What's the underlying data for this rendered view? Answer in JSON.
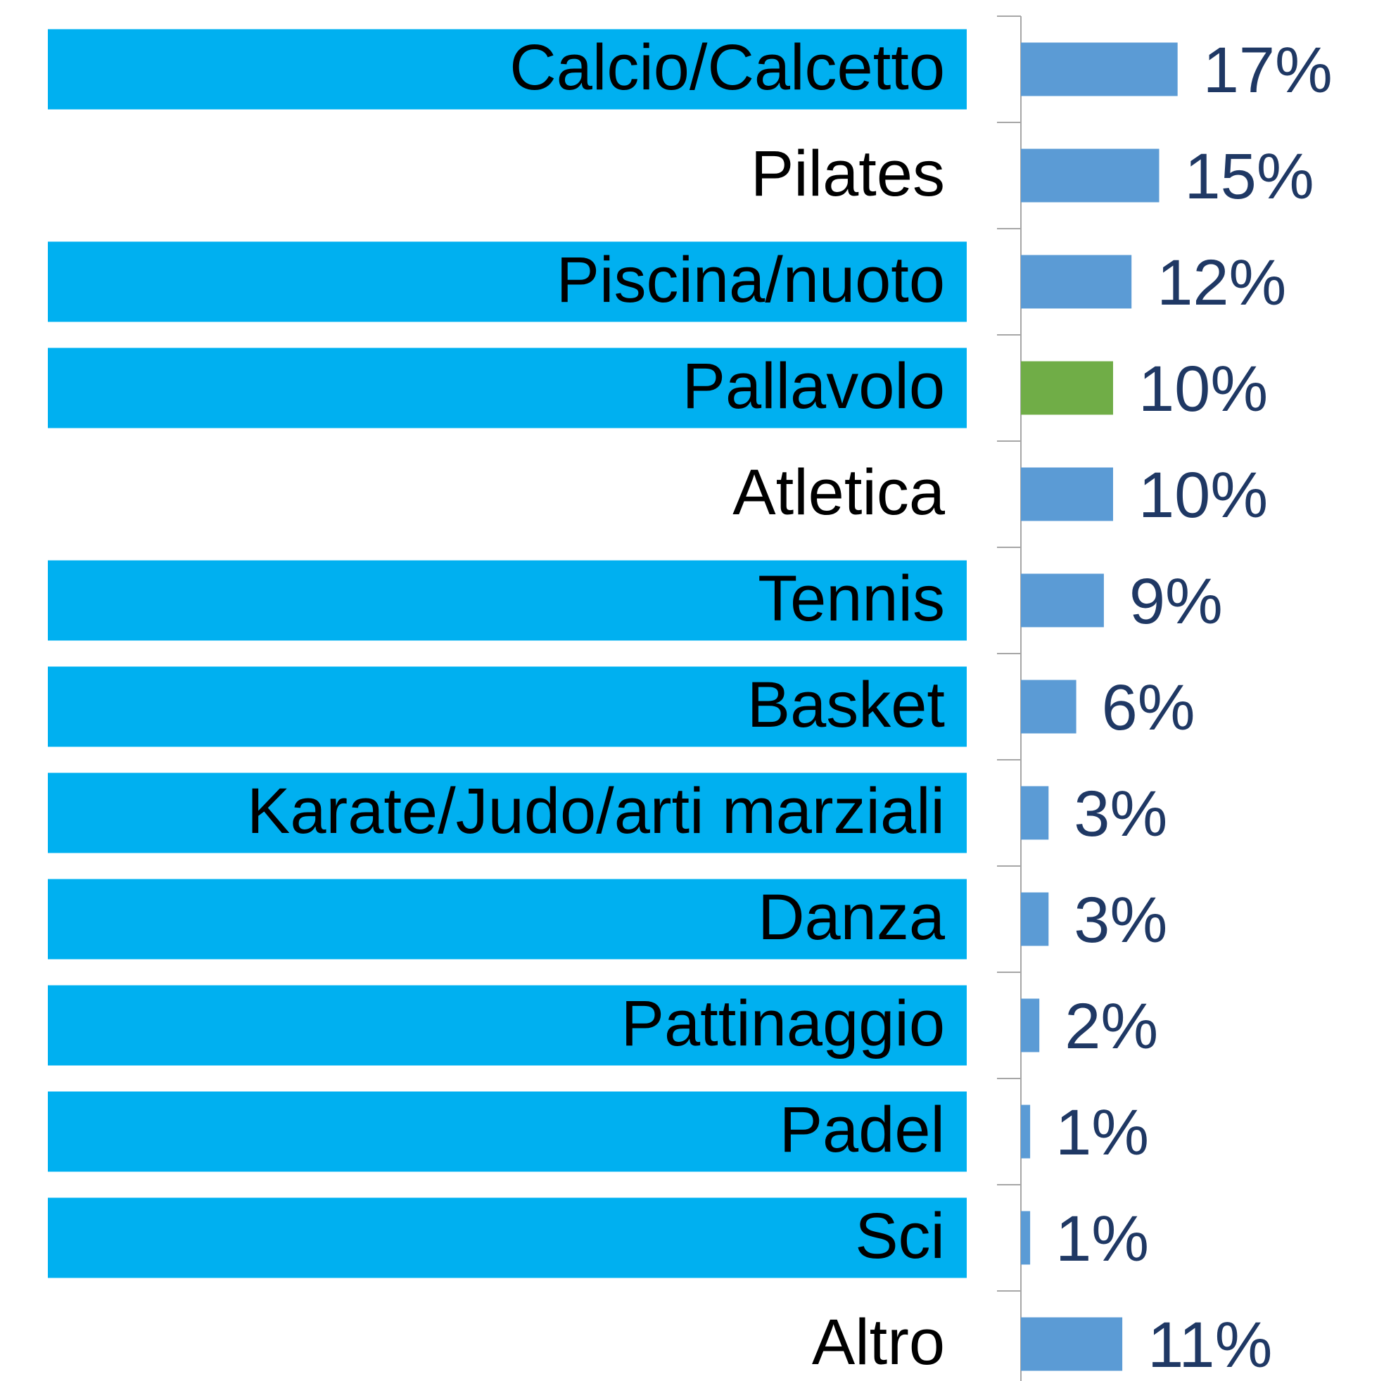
{
  "chart_data": {
    "type": "barh",
    "categories": [
      "Calcio/Calcetto",
      "Pilates",
      "Piscina/nuoto",
      "Pallavolo",
      "Atletica",
      "Tennis",
      "Basket",
      "Karate/Judo/arti marziali",
      "Danza",
      "Pattinaggio",
      "Padel",
      "Sci",
      "Altro"
    ],
    "values": [
      17,
      15,
      12,
      10,
      10,
      9,
      6,
      3,
      3,
      2,
      1,
      1,
      11
    ],
    "value_labels": [
      "17%",
      "15%",
      "12%",
      "10%",
      "10%",
      "9%",
      "6%",
      "3%",
      "3%",
      "2%",
      "1%",
      "1%",
      "11%"
    ],
    "colors": [
      "#5b9bd5",
      "#5b9bd5",
      "#5b9bd5",
      "#70ad47",
      "#5b9bd5",
      "#5b9bd5",
      "#5b9bd5",
      "#5b9bd5",
      "#5b9bd5",
      "#5b9bd5",
      "#5b9bd5",
      "#5b9bd5",
      "#5b9bd5"
    ],
    "label_highlight": [
      true,
      false,
      true,
      true,
      false,
      true,
      true,
      true,
      true,
      true,
      true,
      true,
      false
    ],
    "highlight_color": "#00b0f0"
  }
}
